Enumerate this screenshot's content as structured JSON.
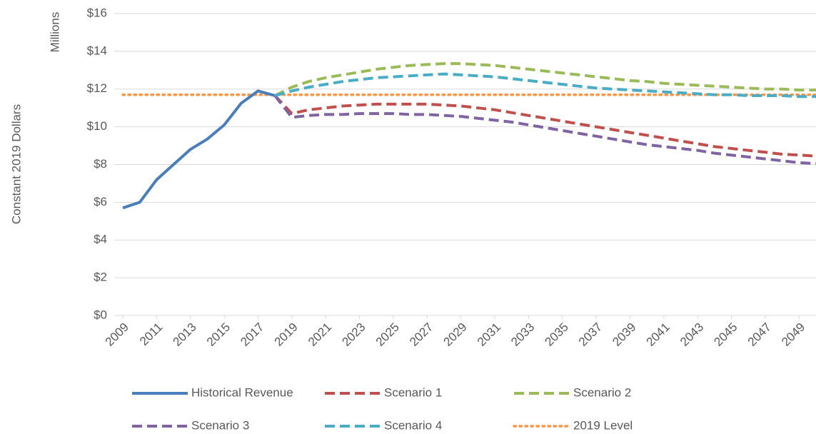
{
  "chart_data": {
    "type": "line",
    "y_title": "Constant 2019 Dollars",
    "y_unit": "Millions",
    "x": [
      2009,
      2010,
      2011,
      2012,
      2013,
      2014,
      2015,
      2016,
      2017,
      2018,
      2019,
      2020,
      2021,
      2022,
      2023,
      2024,
      2025,
      2026,
      2027,
      2028,
      2029,
      2030,
      2031,
      2032,
      2033,
      2034,
      2035,
      2036,
      2037,
      2038,
      2039,
      2040,
      2041,
      2042,
      2043,
      2044,
      2045,
      2046,
      2047,
      2048,
      2049,
      2050
    ],
    "xlim": [
      2009,
      2050
    ],
    "xticks": [
      2009,
      2011,
      2013,
      2015,
      2017,
      2019,
      2021,
      2023,
      2025,
      2027,
      2029,
      2031,
      2033,
      2035,
      2037,
      2039,
      2041,
      2043,
      2045,
      2047,
      2049
    ],
    "ylim": [
      0,
      16
    ],
    "yticks": [
      {
        "value": 0,
        "label": "$0"
      },
      {
        "value": 2,
        "label": "$2"
      },
      {
        "value": 4,
        "label": "$4"
      },
      {
        "value": 6,
        "label": "$6"
      },
      {
        "value": 8,
        "label": "$8"
      },
      {
        "value": 10,
        "label": "$10"
      },
      {
        "value": 12,
        "label": "$12"
      },
      {
        "value": 14,
        "label": "$14"
      },
      {
        "value": 16,
        "label": "$16"
      }
    ],
    "grid": true,
    "legend": "bottom",
    "series": [
      {
        "name": "Historical Revenue",
        "color": "#4a7ebb",
        "style": "solid",
        "values": [
          5.7,
          6.0,
          7.2,
          8.0,
          8.8,
          9.35,
          10.1,
          11.25,
          11.9,
          11.65,
          null,
          null,
          null,
          null,
          null,
          null,
          null,
          null,
          null,
          null,
          null,
          null,
          null,
          null,
          null,
          null,
          null,
          null,
          null,
          null,
          null,
          null,
          null,
          null,
          null,
          null,
          null,
          null,
          null,
          null,
          null,
          null
        ]
      },
      {
        "name": "Scenario 1",
        "color": "#c0504d",
        "style": "dashed",
        "values": [
          null,
          null,
          null,
          null,
          null,
          null,
          null,
          null,
          null,
          11.65,
          10.7,
          10.9,
          11.0,
          11.1,
          11.15,
          11.2,
          11.2,
          11.2,
          11.2,
          11.15,
          11.1,
          11.0,
          10.9,
          10.75,
          10.6,
          10.45,
          10.3,
          10.15,
          10.0,
          9.85,
          9.7,
          9.55,
          9.4,
          9.25,
          9.1,
          8.95,
          8.85,
          8.75,
          8.65,
          8.55,
          8.5,
          8.45
        ]
      },
      {
        "name": "Scenario 2",
        "color": "#9bbb59",
        "style": "dashed",
        "values": [
          null,
          null,
          null,
          null,
          null,
          null,
          null,
          null,
          null,
          11.65,
          12.1,
          12.4,
          12.6,
          12.75,
          12.9,
          13.05,
          13.15,
          13.25,
          13.3,
          13.35,
          13.35,
          13.3,
          13.25,
          13.15,
          13.05,
          12.95,
          12.85,
          12.75,
          12.65,
          12.55,
          12.45,
          12.4,
          12.3,
          12.25,
          12.2,
          12.15,
          12.1,
          12.05,
          12.0,
          12.0,
          11.95,
          11.95
        ]
      },
      {
        "name": "Scenario 3",
        "color": "#8064a2",
        "style": "dashed",
        "values": [
          null,
          null,
          null,
          null,
          null,
          null,
          null,
          null,
          null,
          11.65,
          10.5,
          10.6,
          10.65,
          10.65,
          10.7,
          10.7,
          10.7,
          10.65,
          10.65,
          10.6,
          10.55,
          10.45,
          10.35,
          10.25,
          10.1,
          9.95,
          9.8,
          9.65,
          9.5,
          9.35,
          9.2,
          9.05,
          8.95,
          8.85,
          8.75,
          8.6,
          8.5,
          8.4,
          8.3,
          8.2,
          8.1,
          8.05
        ]
      },
      {
        "name": "Scenario 4",
        "color": "#4bacc6",
        "style": "dashed",
        "values": [
          null,
          null,
          null,
          null,
          null,
          null,
          null,
          null,
          null,
          11.65,
          11.9,
          12.1,
          12.25,
          12.4,
          12.5,
          12.6,
          12.65,
          12.7,
          12.75,
          12.8,
          12.75,
          12.7,
          12.65,
          12.55,
          12.45,
          12.35,
          12.25,
          12.15,
          12.05,
          12.0,
          11.95,
          11.9,
          11.85,
          11.8,
          11.75,
          11.7,
          11.7,
          11.65,
          11.65,
          11.65,
          11.6,
          11.6
        ]
      },
      {
        "name": "2019 Level",
        "color": "#f79646",
        "style": "dotted",
        "values": [
          11.7,
          11.7,
          11.7,
          11.7,
          11.7,
          11.7,
          11.7,
          11.7,
          11.7,
          11.7,
          11.7,
          11.7,
          11.7,
          11.7,
          11.7,
          11.7,
          11.7,
          11.7,
          11.7,
          11.7,
          11.7,
          11.7,
          11.7,
          11.7,
          11.7,
          11.7,
          11.7,
          11.7,
          11.7,
          11.7,
          11.7,
          11.7,
          11.7,
          11.7,
          11.7,
          11.7,
          11.7,
          11.7,
          11.7,
          11.7,
          11.7,
          11.7
        ]
      }
    ]
  }
}
